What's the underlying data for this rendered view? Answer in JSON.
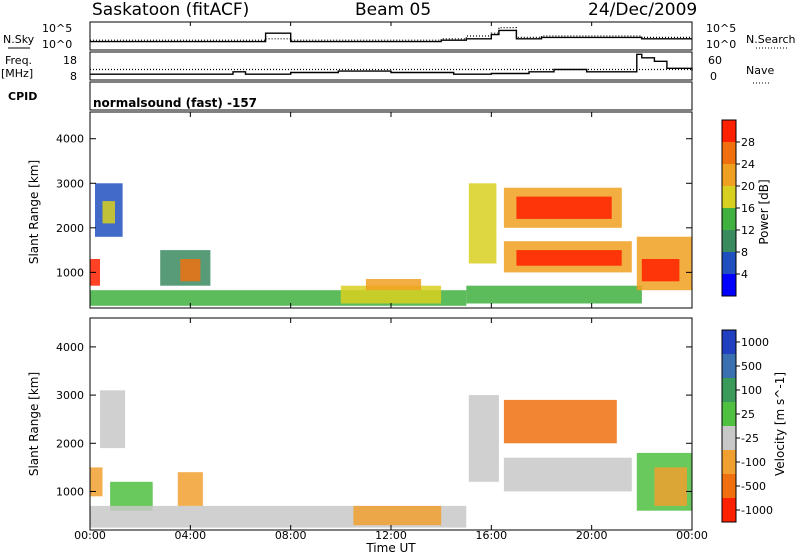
{
  "header": {
    "station": "Saskatoon (fitACF)",
    "beam": "Beam 05",
    "date": "24/Dec/2009"
  },
  "strip_labels": {
    "nsky": "N.Sky",
    "nsearch": "N.Search",
    "freq_top": "Freq.",
    "freq_unit": "[MHz]",
    "nave": "Nave",
    "cpid": "CPID",
    "cpid_value": "normalsound (fast) -157",
    "log_hi": "10^5",
    "log_lo": "10^0"
  },
  "colors": {
    "power_scale": [
      "#0000ff",
      "#2050c0",
      "#3a8a60",
      "#40b040",
      "#d8d020",
      "#f0a020",
      "#f07010",
      "#ff2000"
    ],
    "velocity_scale": [
      "#2040c0",
      "#3a70b0",
      "#3a9a5a",
      "#50c040",
      "#c8c8c8",
      "#f0a030",
      "#f07010",
      "#ff2000"
    ]
  },
  "chart_data": [
    {
      "type": "line",
      "name": "noise",
      "left_label": "N.Sky",
      "right_label": "N.Search",
      "left_ticks": [
        "10^5",
        "10^0"
      ],
      "right_ticks": [
        "10^5",
        "10^0"
      ],
      "x_range": [
        0,
        24
      ],
      "x": [
        0,
        2,
        4,
        6,
        7,
        8,
        10,
        12,
        14,
        15,
        16,
        16.3,
        17,
        18,
        20,
        22,
        24
      ],
      "series": [
        {
          "style": "solid",
          "values": [
            0.3,
            0.3,
            0.3,
            0.3,
            0.6,
            0.3,
            0.3,
            0.3,
            0.35,
            0.4,
            0.55,
            0.7,
            0.4,
            0.45,
            0.45,
            0.4,
            0.4
          ]
        },
        {
          "style": "dotted",
          "values": [
            0.35,
            0.35,
            0.35,
            0.35,
            0.4,
            0.35,
            0.35,
            0.35,
            0.4,
            0.5,
            0.6,
            0.8,
            0.45,
            0.5,
            0.5,
            0.45,
            0.45
          ]
        }
      ]
    },
    {
      "type": "line",
      "name": "frequency",
      "left_label": "Freq. [MHz]",
      "right_label": "Nave",
      "left_ticks": [
        "18",
        "8"
      ],
      "right_ticks": [
        "60",
        "0"
      ],
      "x_range": [
        0,
        24
      ],
      "x": [
        0,
        5.7,
        6.2,
        8,
        9.9,
        12,
        14.5,
        16,
        17.5,
        18.5,
        19.8,
        21.8,
        22,
        22.5,
        23,
        24
      ],
      "series": [
        {
          "style": "solid",
          "values": [
            10.5,
            11.5,
            10.5,
            11.2,
            11.8,
            11.2,
            10.5,
            10.8,
            11.5,
            12.5,
            11.5,
            19,
            17.5,
            16,
            13,
            12
          ]
        },
        {
          "style": "dotted",
          "values": [
            12.5,
            12.5,
            12.5,
            12.5,
            12.5,
            12.5,
            12.5,
            12.5,
            12.5,
            12.5,
            12.5,
            12.5,
            12.5,
            12.5,
            12.5,
            12.5
          ]
        }
      ]
    },
    {
      "type": "heatmap",
      "name": "power",
      "ylabel": "Slant Range [km]",
      "yticks": [
        1000,
        2000,
        3000,
        4000
      ],
      "ylim": [
        200,
        4600
      ],
      "xlim": [
        0,
        24
      ],
      "colorbar": {
        "label": "Power [dB]",
        "ticks": [
          4,
          8,
          12,
          16,
          20,
          24,
          28
        ]
      },
      "regions": [
        {
          "x0": 0.0,
          "x1": 0.4,
          "y0": 700,
          "y1": 1300,
          "level": 7
        },
        {
          "x0": 0.2,
          "x1": 1.3,
          "y0": 1800,
          "y1": 3000,
          "level": 1
        },
        {
          "x0": 0.5,
          "x1": 1.0,
          "y0": 2100,
          "y1": 2600,
          "level": 4
        },
        {
          "x0": 2.8,
          "x1": 4.8,
          "y0": 700,
          "y1": 1500,
          "level": 2
        },
        {
          "x0": 3.6,
          "x1": 4.4,
          "y0": 800,
          "y1": 1300,
          "level": 6
        },
        {
          "x0": 0.0,
          "x1": 15.0,
          "y0": 250,
          "y1": 600,
          "level": 3
        },
        {
          "x0": 10.0,
          "x1": 14.0,
          "y0": 300,
          "y1": 700,
          "level": 4
        },
        {
          "x0": 11.0,
          "x1": 13.2,
          "y0": 600,
          "y1": 850,
          "level": 5
        },
        {
          "x0": 15.1,
          "x1": 16.2,
          "y0": 1200,
          "y1": 3000,
          "level": 4
        },
        {
          "x0": 16.5,
          "x1": 21.2,
          "y0": 2000,
          "y1": 2900,
          "level": 5
        },
        {
          "x0": 17.0,
          "x1": 20.8,
          "y0": 2200,
          "y1": 2700,
          "level": 7
        },
        {
          "x0": 16.5,
          "x1": 21.6,
          "y0": 1000,
          "y1": 1700,
          "level": 5
        },
        {
          "x0": 17.0,
          "x1": 21.2,
          "y0": 1150,
          "y1": 1500,
          "level": 7
        },
        {
          "x0": 15.0,
          "x1": 22.0,
          "y0": 300,
          "y1": 700,
          "level": 3
        },
        {
          "x0": 21.8,
          "x1": 24.0,
          "y0": 600,
          "y1": 1800,
          "level": 5
        },
        {
          "x0": 22.0,
          "x1": 23.5,
          "y0": 800,
          "y1": 1300,
          "level": 7
        }
      ]
    },
    {
      "type": "heatmap",
      "name": "velocity",
      "ylabel": "Slant Range [km]",
      "yticks": [
        1000,
        2000,
        3000,
        4000
      ],
      "ylim": [
        200,
        4600
      ],
      "xlim": [
        0,
        24
      ],
      "xlabel": "Time UT",
      "xticks": [
        "00:00",
        "04:00",
        "08:00",
        "12:00",
        "16:00",
        "20:00",
        "00:00"
      ],
      "colorbar": {
        "label": "Velocity [m s^-1]",
        "ticks": [
          1000,
          500,
          100,
          25,
          -25,
          -100,
          -500,
          -1000
        ]
      },
      "regions": [
        {
          "x0": 0.0,
          "x1": 0.5,
          "y0": 900,
          "y1": 1500,
          "level": 5
        },
        {
          "x0": 0.4,
          "x1": 1.4,
          "y0": 1900,
          "y1": 3100,
          "level": 4
        },
        {
          "x0": 0.8,
          "x1": 2.5,
          "y0": 600,
          "y1": 1200,
          "level": 3
        },
        {
          "x0": 3.5,
          "x1": 4.5,
          "y0": 700,
          "y1": 1400,
          "level": 5
        },
        {
          "x0": 0.0,
          "x1": 15.0,
          "y0": 250,
          "y1": 700,
          "level": 4
        },
        {
          "x0": 10.5,
          "x1": 14.0,
          "y0": 300,
          "y1": 700,
          "level": 5
        },
        {
          "x0": 15.1,
          "x1": 16.3,
          "y0": 1200,
          "y1": 3000,
          "level": 4
        },
        {
          "x0": 16.5,
          "x1": 21.0,
          "y0": 2000,
          "y1": 2900,
          "level": 6
        },
        {
          "x0": 16.5,
          "x1": 21.6,
          "y0": 1000,
          "y1": 1700,
          "level": 4
        },
        {
          "x0": 21.8,
          "x1": 24.0,
          "y0": 600,
          "y1": 1800,
          "level": 3
        },
        {
          "x0": 22.5,
          "x1": 23.8,
          "y0": 700,
          "y1": 1500,
          "level": 5
        }
      ]
    }
  ]
}
